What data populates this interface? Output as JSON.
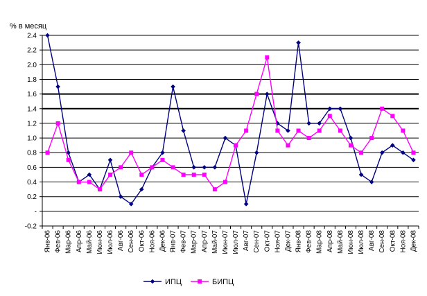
{
  "chart_data": {
    "type": "line",
    "ylabel": "% в месяц",
    "ylim": [
      -0.2,
      2.4
    ],
    "yticks": [
      {
        "v": 2.4,
        "label": "2.4"
      },
      {
        "v": 2.2,
        "label": "2.2"
      },
      {
        "v": 2.0,
        "label": "2.0"
      },
      {
        "v": 1.8,
        "label": "1.8"
      },
      {
        "v": 1.6,
        "label": "1.6"
      },
      {
        "v": 1.4,
        "label": "1.4"
      },
      {
        "v": 1.2,
        "label": "1.2"
      },
      {
        "v": 1.0,
        "label": "1.0"
      },
      {
        "v": 0.8,
        "label": "0.8"
      },
      {
        "v": 0.6,
        "label": "0.6"
      },
      {
        "v": 0.4,
        "label": "0.4"
      },
      {
        "v": 0.2,
        "label": "0.2"
      },
      {
        "v": 0.0,
        "label": "-"
      },
      {
        "v": -0.2,
        "label": "-0.2"
      }
    ],
    "grid": true,
    "highlighted_gridlines": [
      1.4,
      1.6
    ],
    "legend_position": "bottom",
    "categories": [
      "Янв-06",
      "Фев-06",
      "Мар-06",
      "Апр-06",
      "Май-06",
      "Июн-06",
      "Июл-06",
      "Авг-06",
      "Сен-06",
      "Окт-06",
      "Ноя-06",
      "Дек-06",
      "Янв-07",
      "Фев-07",
      "Мар-07",
      "Апр-07",
      "Май-07",
      "Июн-07",
      "Июл-07",
      "Авг-07",
      "Сен-07",
      "Окт-07",
      "Ноя-07",
      "Дек-07",
      "Янв-08",
      "Фев-08",
      "Мар-08",
      "Апр-08",
      "Май-08",
      "Июн-08",
      "Июл-08",
      "Авг-08",
      "Сен-08",
      "Окт-08",
      "Ноя-08",
      "Дек-08"
    ],
    "series": [
      {
        "name": "ИПЦ",
        "color": "#000080",
        "marker": "diamond",
        "values": [
          2.4,
          1.7,
          0.8,
          0.4,
          0.5,
          0.3,
          0.7,
          0.2,
          0.1,
          0.3,
          0.6,
          0.8,
          1.7,
          1.1,
          0.6,
          0.6,
          0.6,
          1.0,
          0.9,
          0.1,
          0.8,
          1.6,
          1.2,
          1.1,
          2.3,
          1.2,
          1.2,
          1.4,
          1.4,
          1.0,
          0.5,
          0.4,
          0.8,
          0.9,
          0.8,
          0.7
        ]
      },
      {
        "name": "БИПЦ",
        "color": "#ff00ff",
        "marker": "square",
        "values": [
          0.8,
          1.2,
          0.7,
          0.4,
          0.4,
          0.3,
          0.5,
          0.6,
          0.8,
          0.5,
          0.6,
          0.7,
          0.6,
          0.5,
          0.5,
          0.5,
          0.3,
          0.4,
          0.9,
          1.1,
          1.6,
          2.1,
          1.1,
          0.9,
          1.1,
          1.0,
          1.1,
          1.3,
          1.1,
          0.9,
          0.8,
          1.0,
          1.4,
          1.3,
          1.1,
          0.8
        ]
      }
    ]
  }
}
